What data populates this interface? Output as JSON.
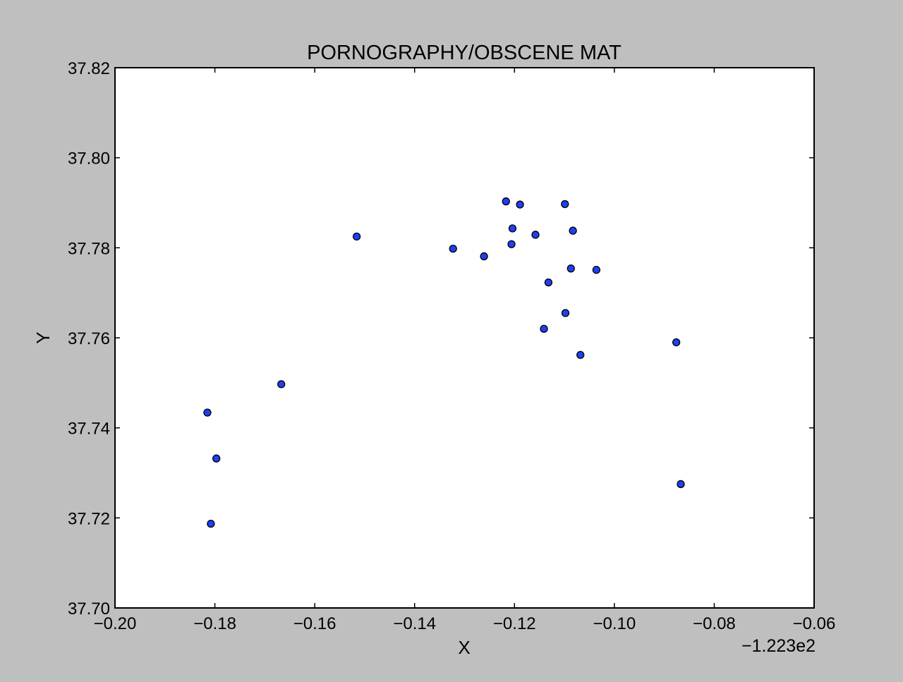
{
  "chart_data": {
    "type": "scatter",
    "title": "PORNOGRAPHY/OBSCENE MAT",
    "xlabel": "X",
    "ylabel": "Y",
    "x_offset_label": "−1.223e2",
    "xlim": [
      -0.2,
      -0.06
    ],
    "ylim": [
      37.7,
      37.82
    ],
    "xticks": [
      -0.2,
      -0.18,
      -0.16,
      -0.14,
      -0.12,
      -0.1,
      -0.08,
      -0.06
    ],
    "xtick_labels": [
      "−0.20",
      "−0.18",
      "−0.16",
      "−0.14",
      "−0.12",
      "−0.10",
      "−0.08",
      "−0.06"
    ],
    "yticks": [
      37.7,
      37.72,
      37.74,
      37.76,
      37.78,
      37.8,
      37.82
    ],
    "ytick_labels": [
      "37.70",
      "37.72",
      "37.74",
      "37.76",
      "37.78",
      "37.80",
      "37.82"
    ],
    "grid": false,
    "marker_color": "#1f3ff0",
    "marker_edge_color": "#000000",
    "points": [
      {
        "x": -0.1217,
        "y": 37.7903
      },
      {
        "x": -0.1189,
        "y": 37.7896
      },
      {
        "x": -0.1099,
        "y": 37.7897
      },
      {
        "x": -0.1516,
        "y": 37.7825
      },
      {
        "x": -0.1204,
        "y": 37.7843
      },
      {
        "x": -0.1158,
        "y": 37.7829
      },
      {
        "x": -0.1083,
        "y": 37.7838
      },
      {
        "x": -0.1323,
        "y": 37.7798
      },
      {
        "x": -0.1206,
        "y": 37.7808
      },
      {
        "x": -0.1261,
        "y": 37.7781
      },
      {
        "x": -0.1087,
        "y": 37.7754
      },
      {
        "x": -0.1036,
        "y": 37.7751
      },
      {
        "x": -0.1132,
        "y": 37.7723
      },
      {
        "x": -0.1098,
        "y": 37.7655
      },
      {
        "x": -0.1141,
        "y": 37.762
      },
      {
        "x": -0.1068,
        "y": 37.7562
      },
      {
        "x": -0.0876,
        "y": 37.759
      },
      {
        "x": -0.1667,
        "y": 37.7497
      },
      {
        "x": -0.1815,
        "y": 37.7434
      },
      {
        "x": -0.1797,
        "y": 37.7332
      },
      {
        "x": -0.0867,
        "y": 37.7275
      },
      {
        "x": -0.1808,
        "y": 37.7187
      }
    ]
  }
}
